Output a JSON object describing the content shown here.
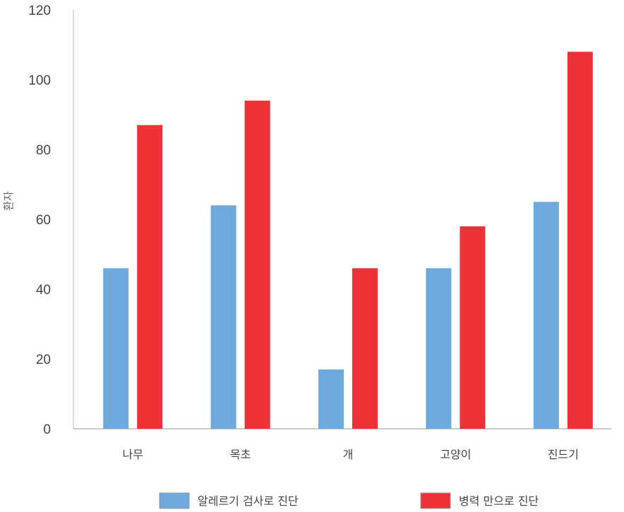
{
  "chart_data": {
    "type": "bar",
    "title": "",
    "xlabel": "",
    "ylabel": "환자",
    "ylim": [
      0,
      120
    ],
    "yticks": [
      0,
      20,
      40,
      60,
      80,
      100,
      120
    ],
    "grid": false,
    "legend_position": "bottom",
    "categories": [
      "나무",
      "목초",
      "개",
      "고양이",
      "진드기"
    ],
    "series": [
      {
        "name": "알레르기 검사로 진단",
        "color": "#6fa8dc",
        "values": [
          46,
          64,
          17,
          46,
          65
        ]
      },
      {
        "name": "병력 만으로 진단",
        "color": "#ee3137",
        "values": [
          87,
          94,
          46,
          58,
          108
        ]
      }
    ]
  }
}
